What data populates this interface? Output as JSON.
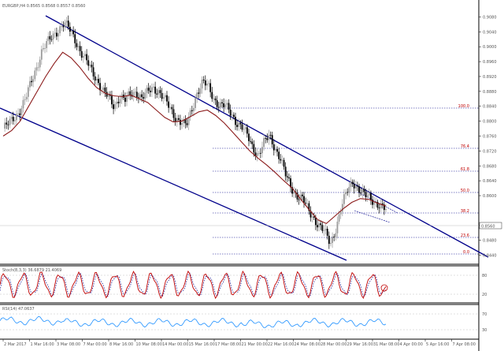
{
  "header": {
    "title": "EURGBP,H4 0.8565 0.8568 0.8557 0.8560"
  },
  "colors": {
    "background": "#ffffff",
    "bull_candle": "#000000",
    "bear_candle": "#9a9a9a",
    "moving_average": "#8b1a1a",
    "channel": "#00008b",
    "fib_line": "#00008b",
    "stoch_main": "#c00000",
    "stoch_signal": "#00008b",
    "rsi": "#1e90ff"
  },
  "price_axis": {
    "labels": [
      "0.9080",
      "0.9040",
      "0.9000",
      "0.8960",
      "0.8920",
      "0.8880",
      "0.8840",
      "0.8800",
      "0.8760",
      "0.8720",
      "0.8680",
      "0.8640",
      "0.8600",
      "0.8565",
      "0.8520",
      "0.8480",
      "0.8440"
    ],
    "current_price": "0.8560"
  },
  "fib_levels": [
    {
      "label": "100.0"
    },
    {
      "label": "76.4"
    },
    {
      "label": "61.8"
    },
    {
      "label": "50.0"
    },
    {
      "label": "38.2"
    },
    {
      "label": "23.6"
    },
    {
      "label": "0.0"
    }
  ],
  "stochastic": {
    "label": "Stoch(8,3,3) 36.6879 21.4069",
    "axis": [
      "80",
      "20"
    ]
  },
  "rsi": {
    "label": "RSI(14) 47.0637",
    "axis": [
      "70",
      "30"
    ]
  },
  "time_axis": {
    "labels": [
      "2 Mar 2017",
      "1 Mar 16:00",
      "3 Mar 08:00",
      "7 Mar 00:00",
      "8 Mar 16:00",
      "10 Mar 08:00",
      "14 Mar 00:00",
      "15 Mar 16:00",
      "17 Mar 08:00",
      "21 Mar 00:00",
      "22 Mar 16:00",
      "24 Mar 08:00",
      "28 Mar 00:00",
      "29 Mar 16:00",
      "31 Mar 08:00",
      "4 Apr 00:00",
      "5 Apr 16:00",
      "7 Apr 08:00"
    ]
  },
  "chart_data": {
    "type": "candlestick",
    "instrument": "EURGBP",
    "timeframe": "H4",
    "close": [
      0.878,
      0.8792,
      0.881,
      0.883,
      0.8858,
      0.8902,
      0.8945,
      0.899,
      0.901,
      0.903,
      0.9048,
      0.9062,
      0.9045,
      0.902,
      0.8985,
      0.896,
      0.8935,
      0.891,
      0.888,
      0.8862,
      0.884,
      0.8868,
      0.8855,
      0.8872,
      0.888,
      0.8862,
      0.8875,
      0.889,
      0.8882,
      0.886,
      0.8835,
      0.8812,
      0.88,
      0.8785,
      0.883,
      0.888,
      0.8905,
      0.889,
      0.886,
      0.8845,
      0.884,
      0.8822,
      0.88,
      0.8785,
      0.876,
      0.873,
      0.871,
      0.874,
      0.876,
      0.873,
      0.87,
      0.865,
      0.862,
      0.8602,
      0.859,
      0.856,
      0.854,
      0.852,
      0.85,
      0.847,
      0.8515,
      0.857,
      0.861,
      0.864,
      0.862,
      0.86,
      0.8596,
      0.8585,
      0.857,
      0.856
    ],
    "moving_average": [
      0.876,
      0.8775,
      0.88,
      0.884,
      0.888,
      0.892,
      0.8955,
      0.8985,
      0.897,
      0.8945,
      0.8915,
      0.889,
      0.8875,
      0.8868,
      0.8866,
      0.887,
      0.886,
      0.885,
      0.883,
      0.881,
      0.8798,
      0.88,
      0.8812,
      0.8825,
      0.883,
      0.8815,
      0.8795,
      0.877,
      0.8745,
      0.872,
      0.87,
      0.8682,
      0.8662,
      0.864,
      0.862,
      0.859,
      0.8562,
      0.8535,
      0.8525,
      0.8545,
      0.8565,
      0.8582,
      0.8592,
      0.859,
      0.858,
      0.8572
    ]
  }
}
